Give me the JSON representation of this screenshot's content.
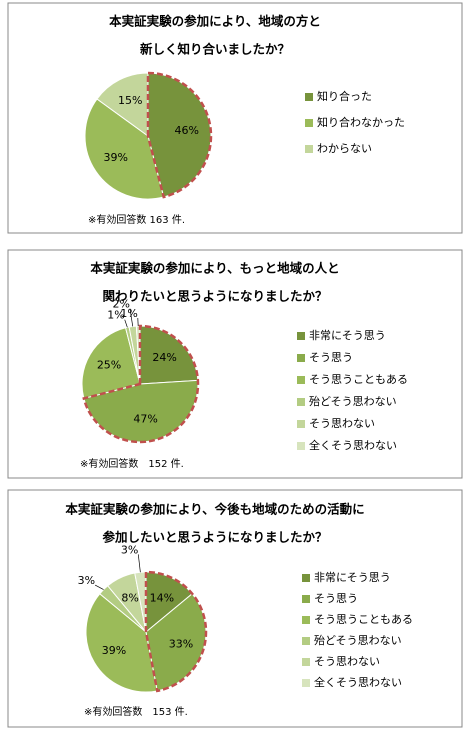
{
  "chart_data": [
    {
      "type": "pie",
      "title": [
        "本実証実験の参加により、地域の方と",
        "新しく知り合いましたか？"
      ],
      "categories": [
        "知り合った",
        "知り合わなかった",
        "わからない"
      ],
      "values": [
        46,
        39,
        15
      ],
      "value_labels": [
        "46%",
        "39%",
        "15%"
      ],
      "colors": [
        "#77933c",
        "#9bbb59",
        "#c3d69b"
      ],
      "highlight": [
        0
      ],
      "note": "※有効回答数 163 件."
    },
    {
      "type": "pie",
      "title": [
        "本実証実験の参加により、もっと地域の人と",
        "関わりたいと思うようになりましたか？"
      ],
      "categories": [
        "非常にそう思う",
        "そう思う",
        "そう思うこともある",
        "殆どそう思わない",
        "そう思わない",
        "全くそう思わない"
      ],
      "values": [
        24,
        47,
        25,
        1,
        2,
        1
      ],
      "value_labels": [
        "24%",
        "47%",
        "25%",
        "1%",
        "2%",
        "1%"
      ],
      "colors": [
        "#77933c",
        "#8aab4b",
        "#9bbb59",
        "#b3cc82",
        "#c3d69b",
        "#d7e4bd"
      ],
      "highlight": [
        0,
        1
      ],
      "note": "※有効回答数　152 件."
    },
    {
      "type": "pie",
      "title": [
        "本実証実験の参加により、今後も地域のための活動に",
        "参加したいと思うようになりましたか？"
      ],
      "categories": [
        "非常にそう思う",
        "そう思う",
        "そう思うこともある",
        "殆どそう思わない",
        "そう思わない",
        "全くそう思わない"
      ],
      "values": [
        14,
        33,
        39,
        3,
        8,
        3
      ],
      "value_labels": [
        "14%",
        "33%",
        "39%",
        "3%",
        "8%",
        "3%"
      ],
      "colors": [
        "#77933c",
        "#8aab4b",
        "#9bbb59",
        "#b3cc82",
        "#c3d69b",
        "#d7e4bd"
      ],
      "highlight": [
        0,
        1
      ],
      "note": "※有効回答数　153 件."
    }
  ]
}
